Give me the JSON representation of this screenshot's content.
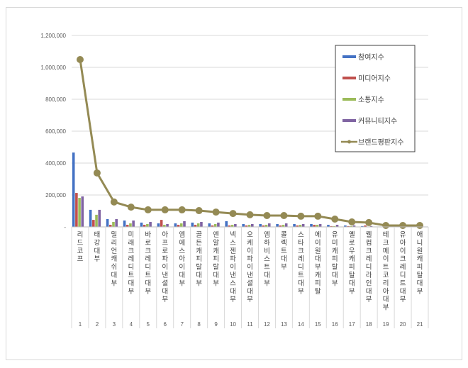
{
  "chart_data": {
    "type": "bar",
    "title": "",
    "xlabel": "",
    "ylabel": "",
    "ylim": [
      0,
      1200000
    ],
    "yticks": [
      0,
      200000,
      400000,
      600000,
      800000,
      1000000,
      1200000
    ],
    "ytick_labels": [
      "-",
      "200,000",
      "400,000",
      "600,000",
      "800,000",
      "1,000,000",
      "1,200,000"
    ],
    "grid": true,
    "legend_position": "upper right",
    "x": [
      1,
      2,
      3,
      4,
      5,
      6,
      7,
      8,
      9,
      10,
      11,
      12,
      13,
      14,
      15,
      16,
      17,
      18,
      19,
      20,
      21
    ],
    "categories": [
      "리드코프",
      "태강대부",
      "밀리언캐쉬대부",
      "미래크레디트대부",
      "바로크레디트대부",
      "아프로파이낸셜대부",
      "엠에스아이대부",
      "골든캐피탈대부",
      "엔알캐피탈대부",
      "넥스젠파이낸스대부",
      "오케이파이낸셜대부",
      "엠하비스트대부",
      "콜렉트대부",
      "스타크레디트대부",
      "에이원대부캐피탈",
      "유미캐피탈대부",
      "옐로우캐피탈대부",
      "웰컴크레디라인대부",
      "테크메이트코리아대부",
      "유아이크레디트대부",
      "애니원캐피탈대부"
    ],
    "series": [
      {
        "name": "참여지수",
        "type": "bar",
        "color": "#4472c4",
        "values": [
          466000,
          107000,
          49000,
          40000,
          27000,
          22000,
          22000,
          27000,
          22000,
          36000,
          18000,
          18000,
          18000,
          18000,
          18000,
          13000,
          9000,
          5000,
          2000,
          2000,
          2000
        ]
      },
      {
        "name": "미디어지수",
        "type": "bar",
        "color": "#c0504d",
        "values": [
          213000,
          44000,
          13000,
          13000,
          13000,
          44000,
          13000,
          13000,
          9000,
          9000,
          9000,
          9000,
          9000,
          9000,
          13000,
          5000,
          5000,
          9000,
          2000,
          2000,
          2000
        ]
      },
      {
        "name": "소통지수",
        "type": "bar",
        "color": "#9bbb59",
        "values": [
          182000,
          76000,
          31000,
          22000,
          18000,
          13000,
          22000,
          22000,
          18000,
          13000,
          13000,
          13000,
          13000,
          13000,
          13000,
          5000,
          5000,
          2000,
          1000,
          1000,
          1000
        ]
      },
      {
        "name": "커뮤니티지수",
        "type": "bar",
        "color": "#8064a2",
        "values": [
          191000,
          107000,
          49000,
          40000,
          31000,
          18000,
          36000,
          31000,
          27000,
          18000,
          18000,
          22000,
          22000,
          18000,
          18000,
          13000,
          9000,
          5000,
          2000,
          2000,
          2000
        ]
      },
      {
        "name": "브랜드평판지수",
        "type": "line",
        "color": "#948a54",
        "values": [
          1049000,
          338000,
          156000,
          124000,
          107000,
          107000,
          107000,
          102000,
          93000,
          84000,
          76000,
          71000,
          71000,
          67000,
          67000,
          49000,
          31000,
          27000,
          9000,
          9000,
          9000
        ]
      }
    ]
  },
  "legend": {
    "items": [
      {
        "label": "참여지수",
        "color": "#4472c4",
        "kind": "bar"
      },
      {
        "label": "미디어지수",
        "color": "#c0504d",
        "kind": "bar"
      },
      {
        "label": "소통지수",
        "color": "#9bbb59",
        "kind": "bar"
      },
      {
        "label": "커뮤니티지수",
        "color": "#8064a2",
        "kind": "bar"
      },
      {
        "label": "브랜드평판지수",
        "color": "#948a54",
        "kind": "line"
      }
    ]
  },
  "colors": {
    "grid": "#d9d9d9",
    "axis": "#bfbfbf",
    "frame": "#d9d9d9",
    "tick_text": "#595959"
  }
}
